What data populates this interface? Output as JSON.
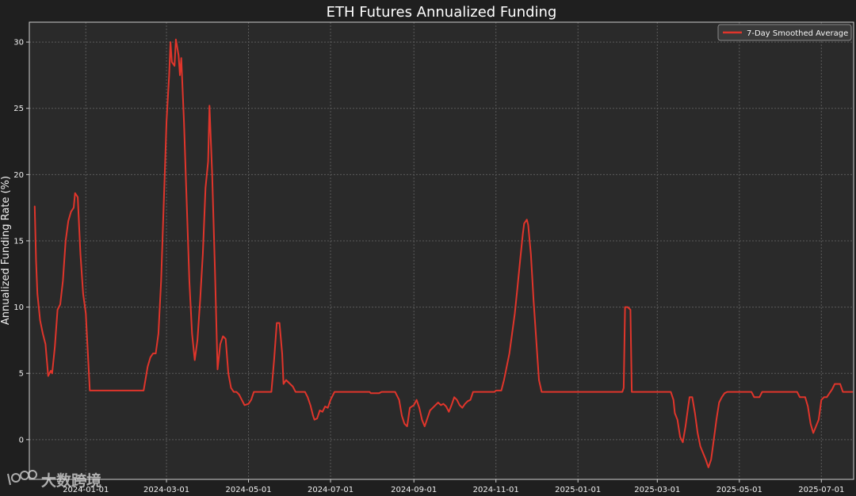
{
  "chart_data": {
    "type": "line",
    "title": "ETH Futures Annualized Funding",
    "ylabel": "Annualized Funding Rate (%)",
    "xlabel": "",
    "xlim": [
      "2023-11-20",
      "2025-07-25"
    ],
    "ylim": [
      -3,
      31.5
    ],
    "y_ticks": [
      0,
      5,
      10,
      15,
      20,
      25,
      30
    ],
    "x_ticks": [
      "2024-01-01",
      "2024-03-01",
      "2024-05-01",
      "2024-07-01",
      "2024-09-01",
      "2024-11-01",
      "2025-01-01",
      "2025-03-01",
      "2025-05-01",
      "2025-07-01"
    ],
    "grid": true,
    "legend_position": "top-right",
    "colors": {
      "line": "#e0352b",
      "background": "#2a2a2a",
      "figure": "#1f1f1f",
      "grid": "#5a5a5a"
    },
    "series": [
      {
        "name": "7-Day Smoothed Average",
        "points": [
          [
            "2023-11-24",
            17.6
          ],
          [
            "2023-11-25",
            13.5
          ],
          [
            "2023-11-26",
            11.0
          ],
          [
            "2023-11-28",
            9.0
          ],
          [
            "2023-11-30",
            8.0
          ],
          [
            "2023-12-02",
            7.2
          ],
          [
            "2023-12-04",
            4.8
          ],
          [
            "2023-12-06",
            5.2
          ],
          [
            "2023-12-07",
            5.0
          ],
          [
            "2023-12-09",
            7.0
          ],
          [
            "2023-12-11",
            9.8
          ],
          [
            "2023-12-13",
            10.2
          ],
          [
            "2023-12-15",
            12.0
          ],
          [
            "2023-12-17",
            15.0
          ],
          [
            "2023-12-19",
            16.5
          ],
          [
            "2023-12-21",
            17.2
          ],
          [
            "2023-12-23",
            17.5
          ],
          [
            "2023-12-24",
            18.6
          ],
          [
            "2023-12-26",
            18.3
          ],
          [
            "2023-12-28",
            14.0
          ],
          [
            "2023-12-30",
            11.0
          ],
          [
            "2024-01-01",
            9.5
          ],
          [
            "2024-01-04",
            3.7
          ],
          [
            "2024-02-13",
            3.7
          ],
          [
            "2024-02-16",
            5.5
          ],
          [
            "2024-02-18",
            6.2
          ],
          [
            "2024-02-20",
            6.5
          ],
          [
            "2024-02-22",
            6.5
          ],
          [
            "2024-02-24",
            8.0
          ],
          [
            "2024-02-26",
            12.0
          ],
          [
            "2024-02-28",
            18.0
          ],
          [
            "2024-03-01",
            24.0
          ],
          [
            "2024-03-03",
            27.5
          ],
          [
            "2024-03-04",
            30.0
          ],
          [
            "2024-03-05",
            28.5
          ],
          [
            "2024-03-07",
            28.2
          ],
          [
            "2024-03-08",
            30.2
          ],
          [
            "2024-03-10",
            29.0
          ],
          [
            "2024-03-11",
            27.5
          ],
          [
            "2024-03-12",
            28.8
          ],
          [
            "2024-03-14",
            24.0
          ],
          [
            "2024-03-16",
            18.0
          ],
          [
            "2024-03-18",
            12.0
          ],
          [
            "2024-03-20",
            8.0
          ],
          [
            "2024-03-22",
            6.0
          ],
          [
            "2024-03-24",
            7.5
          ],
          [
            "2024-03-26",
            10.5
          ],
          [
            "2024-03-28",
            14.0
          ],
          [
            "2024-03-30",
            19.0
          ],
          [
            "2024-04-01",
            21.0
          ],
          [
            "2024-04-02",
            25.2
          ],
          [
            "2024-04-04",
            20.0
          ],
          [
            "2024-04-06",
            13.0
          ],
          [
            "2024-04-08",
            5.3
          ],
          [
            "2024-04-10",
            7.2
          ],
          [
            "2024-04-12",
            7.8
          ],
          [
            "2024-04-14",
            7.6
          ],
          [
            "2024-04-16",
            5.0
          ],
          [
            "2024-04-18",
            3.9
          ],
          [
            "2024-04-20",
            3.6
          ],
          [
            "2024-04-22",
            3.6
          ],
          [
            "2024-04-24",
            3.4
          ],
          [
            "2024-04-26",
            3.0
          ],
          [
            "2024-04-28",
            2.6
          ],
          [
            "2024-05-01",
            2.7
          ],
          [
            "2024-05-03",
            3.0
          ],
          [
            "2024-05-05",
            3.6
          ],
          [
            "2024-05-18",
            3.6
          ],
          [
            "2024-05-20",
            6.0
          ],
          [
            "2024-05-22",
            8.8
          ],
          [
            "2024-05-24",
            8.8
          ],
          [
            "2024-05-26",
            6.5
          ],
          [
            "2024-05-27",
            4.2
          ],
          [
            "2024-05-29",
            4.5
          ],
          [
            "2024-06-01",
            4.2
          ],
          [
            "2024-06-03",
            4.0
          ],
          [
            "2024-06-05",
            3.6
          ],
          [
            "2024-06-12",
            3.6
          ],
          [
            "2024-06-14",
            3.2
          ],
          [
            "2024-06-16",
            2.6
          ],
          [
            "2024-06-18",
            1.8
          ],
          [
            "2024-06-19",
            1.5
          ],
          [
            "2024-06-21",
            1.6
          ],
          [
            "2024-06-23",
            2.2
          ],
          [
            "2024-06-25",
            2.1
          ],
          [
            "2024-06-27",
            2.5
          ],
          [
            "2024-06-29",
            2.4
          ],
          [
            "2024-07-01",
            3.0
          ],
          [
            "2024-07-04",
            3.6
          ],
          [
            "2024-07-30",
            3.6
          ],
          [
            "2024-07-31",
            3.5
          ],
          [
            "2024-08-06",
            3.5
          ],
          [
            "2024-08-08",
            3.6
          ],
          [
            "2024-08-18",
            3.6
          ],
          [
            "2024-08-21",
            3.0
          ],
          [
            "2024-08-23",
            1.8
          ],
          [
            "2024-08-25",
            1.2
          ],
          [
            "2024-08-27",
            1.0
          ],
          [
            "2024-08-29",
            2.4
          ],
          [
            "2024-09-01",
            2.6
          ],
          [
            "2024-09-03",
            3.0
          ],
          [
            "2024-09-05",
            2.4
          ],
          [
            "2024-09-07",
            1.5
          ],
          [
            "2024-09-09",
            1.0
          ],
          [
            "2024-09-11",
            1.6
          ],
          [
            "2024-09-13",
            2.2
          ],
          [
            "2024-09-15",
            2.4
          ],
          [
            "2024-09-17",
            2.6
          ],
          [
            "2024-09-19",
            2.8
          ],
          [
            "2024-09-21",
            2.6
          ],
          [
            "2024-09-23",
            2.7
          ],
          [
            "2024-09-25",
            2.5
          ],
          [
            "2024-09-27",
            2.1
          ],
          [
            "2024-09-29",
            2.6
          ],
          [
            "2024-10-01",
            3.2
          ],
          [
            "2024-10-03",
            3.0
          ],
          [
            "2024-10-05",
            2.6
          ],
          [
            "2024-10-07",
            2.4
          ],
          [
            "2024-10-09",
            2.7
          ],
          [
            "2024-10-11",
            2.9
          ],
          [
            "2024-10-13",
            3.0
          ],
          [
            "2024-10-15",
            3.6
          ],
          [
            "2024-10-31",
            3.6
          ],
          [
            "2024-11-01",
            3.7
          ],
          [
            "2024-11-05",
            3.7
          ],
          [
            "2024-11-07",
            4.5
          ],
          [
            "2024-11-09",
            5.5
          ],
          [
            "2024-11-11",
            6.5
          ],
          [
            "2024-11-13",
            8.0
          ],
          [
            "2024-11-15",
            9.5
          ],
          [
            "2024-11-17",
            11.5
          ],
          [
            "2024-11-19",
            13.5
          ],
          [
            "2024-11-21",
            15.5
          ],
          [
            "2024-11-22",
            16.3
          ],
          [
            "2024-11-24",
            16.6
          ],
          [
            "2024-11-25",
            16.2
          ],
          [
            "2024-11-27",
            14.0
          ],
          [
            "2024-11-29",
            10.5
          ],
          [
            "2024-12-01",
            7.5
          ],
          [
            "2024-12-03",
            4.5
          ],
          [
            "2024-12-05",
            3.6
          ],
          [
            "2025-02-03",
            3.6
          ],
          [
            "2025-02-04",
            3.9
          ],
          [
            "2025-02-05",
            10.0
          ],
          [
            "2025-02-07",
            10.0
          ],
          [
            "2025-02-09",
            9.8
          ],
          [
            "2025-02-10",
            3.6
          ],
          [
            "2025-03-11",
            3.6
          ],
          [
            "2025-03-13",
            3.0
          ],
          [
            "2025-03-14",
            2.0
          ],
          [
            "2025-03-16",
            1.5
          ],
          [
            "2025-03-18",
            0.2
          ],
          [
            "2025-03-20",
            -0.2
          ],
          [
            "2025-03-22",
            1.0
          ],
          [
            "2025-03-24",
            2.5
          ],
          [
            "2025-03-25",
            3.2
          ],
          [
            "2025-03-27",
            3.2
          ],
          [
            "2025-03-29",
            2.0
          ],
          [
            "2025-03-31",
            0.5
          ],
          [
            "2025-04-02",
            -0.5
          ],
          [
            "2025-04-04",
            -1.0
          ],
          [
            "2025-04-06",
            -1.5
          ],
          [
            "2025-04-08",
            -2.1
          ],
          [
            "2025-04-10",
            -1.5
          ],
          [
            "2025-04-12",
            0.0
          ],
          [
            "2025-04-14",
            1.5
          ],
          [
            "2025-04-16",
            2.8
          ],
          [
            "2025-04-18",
            3.2
          ],
          [
            "2025-04-20",
            3.5
          ],
          [
            "2025-04-22",
            3.6
          ],
          [
            "2025-05-10",
            3.6
          ],
          [
            "2025-05-12",
            3.2
          ],
          [
            "2025-05-16",
            3.2
          ],
          [
            "2025-05-18",
            3.6
          ],
          [
            "2025-06-13",
            3.6
          ],
          [
            "2025-06-15",
            3.2
          ],
          [
            "2025-06-19",
            3.2
          ],
          [
            "2025-06-21",
            2.5
          ],
          [
            "2025-06-23",
            1.2
          ],
          [
            "2025-06-25",
            0.5
          ],
          [
            "2025-06-27",
            1.0
          ],
          [
            "2025-06-29",
            1.5
          ],
          [
            "2025-07-01",
            3.0
          ],
          [
            "2025-07-03",
            3.2
          ],
          [
            "2025-07-05",
            3.2
          ],
          [
            "2025-07-07",
            3.5
          ],
          [
            "2025-07-09",
            3.8
          ],
          [
            "2025-07-11",
            4.2
          ],
          [
            "2025-07-15",
            4.2
          ],
          [
            "2025-07-17",
            3.6
          ],
          [
            "2025-07-24",
            3.6
          ]
        ]
      }
    ]
  },
  "watermark": {
    "text": "大数跨境"
  }
}
